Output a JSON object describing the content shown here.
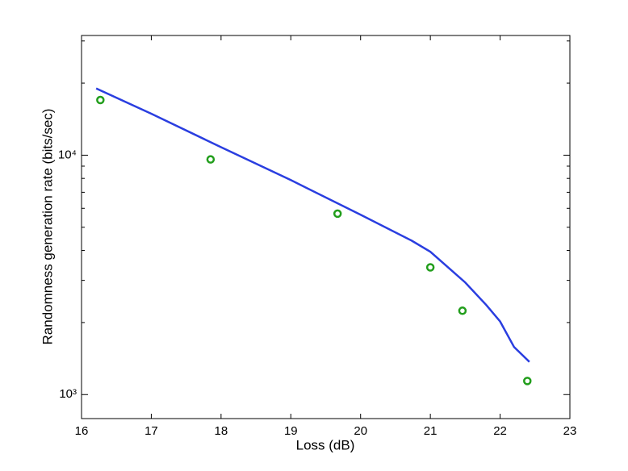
{
  "chart_data": {
    "type": "line",
    "xlabel": "Loss (dB)",
    "ylabel": "Randomness generation rate (bits/sec)",
    "log_y": true,
    "xlim": [
      16,
      23
    ],
    "xticks": [
      16,
      17,
      18,
      19,
      20,
      21,
      22,
      23
    ],
    "ylim": [
      794,
      31623
    ],
    "yticks": [
      {
        "value": 1000,
        "label": "10³"
      },
      {
        "value": 10000,
        "label": "10⁴"
      }
    ],
    "yminorticks": [
      2000,
      3000,
      4000,
      5000,
      6000,
      7000,
      8000,
      9000,
      20000,
      30000
    ],
    "series": [
      {
        "kind": "line",
        "color": "#2a3ee0",
        "x": [
          16.21,
          17,
          18,
          19,
          20,
          20.73,
          21,
          21.5,
          21.8,
          22,
          22.2,
          22.42
        ],
        "values": [
          19000,
          14900,
          10800,
          7870,
          5640,
          4400,
          3950,
          2940,
          2370,
          2020,
          1580,
          1370
        ]
      },
      {
        "kind": "scatter",
        "color": "#229e1c",
        "x": [
          16.27,
          17.85,
          19.67,
          21.0,
          21.46,
          22.39
        ],
        "values": [
          17000,
          9600,
          5700,
          3400,
          2240,
          1140
        ]
      }
    ]
  }
}
